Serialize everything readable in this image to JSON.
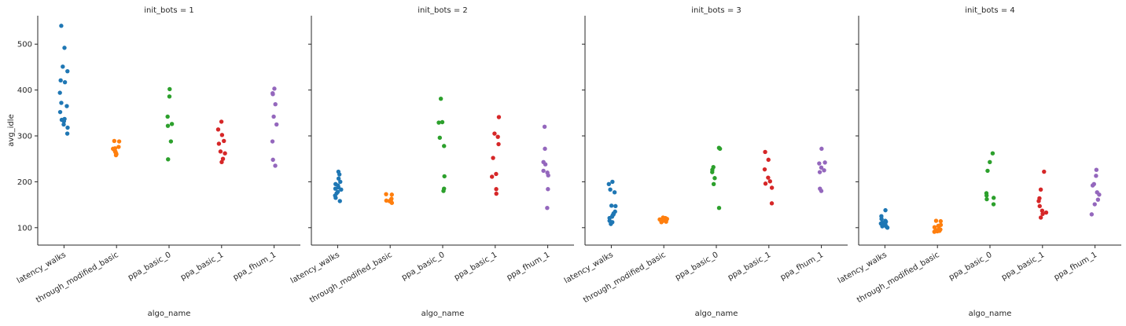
{
  "chart_data": {
    "type": "scatter",
    "subtype": "stripplot-facets",
    "ylabel": "avg_idle",
    "xlabel": "algo_name",
    "ylim": [
      62,
      562
    ],
    "yticks": [
      100,
      200,
      300,
      400,
      500
    ],
    "shared_y": true,
    "grid": false,
    "categories": [
      "latency_walks",
      "through_modified_basic",
      "ppa_basic_0",
      "ppa_basic_1",
      "ppa_fhum_1"
    ],
    "category_colors": {
      "latency_walks": "#1f77b4",
      "through_modified_basic": "#ff7f0e",
      "ppa_basic_0": "#2ca02c",
      "ppa_basic_1": "#d62728",
      "ppa_fhum_1": "#9467bd"
    },
    "facets": [
      {
        "title": "init_bots = 1",
        "points": {
          "latency_walks": [
            540,
            492,
            451,
            441,
            421,
            417,
            394,
            372,
            365,
            352,
            337,
            335,
            332,
            325,
            318,
            305
          ],
          "through_modified_basic": [
            289,
            288,
            276,
            273,
            272,
            270,
            266,
            265,
            262,
            260,
            258
          ],
          "ppa_basic_0": [
            402,
            386,
            342,
            326,
            322,
            288,
            249
          ],
          "ppa_basic_1": [
            331,
            314,
            302,
            289,
            283,
            266,
            262,
            250,
            243
          ],
          "ppa_fhum_1": [
            403,
            393,
            391,
            369,
            342,
            325,
            288,
            248,
            235
          ]
        }
      },
      {
        "title": "init_bots = 2",
        "points": {
          "latency_walks": [
            222,
            216,
            207,
            200,
            195,
            192,
            188,
            185,
            183,
            178,
            175,
            170,
            165,
            158
          ],
          "through_modified_basic": [
            173,
            172,
            163,
            161,
            159,
            158,
            157,
            156,
            154
          ],
          "ppa_basic_0": [
            381,
            330,
            329,
            296,
            278,
            212,
            185,
            180
          ],
          "ppa_basic_1": [
            341,
            305,
            298,
            282,
            252,
            217,
            211,
            184,
            174
          ],
          "ppa_fhum_1": [
            320,
            272,
            243,
            238,
            224,
            220,
            214,
            184,
            143
          ]
        }
      },
      {
        "title": "init_bots = 3",
        "points": {
          "latency_walks": [
            200,
            195,
            183,
            177,
            148,
            147,
            135,
            131,
            129,
            127,
            124,
            121,
            115,
            112,
            108
          ],
          "through_modified_basic": [
            122,
            121,
            120,
            119,
            118,
            117,
            116,
            115,
            114,
            113,
            112
          ],
          "ppa_basic_0": [
            274,
            272,
            232,
            226,
            221,
            208,
            195,
            143
          ],
          "ppa_basic_1": [
            265,
            248,
            227,
            209,
            201,
            196,
            187,
            153
          ],
          "ppa_fhum_1": [
            272,
            242,
            240,
            231,
            225,
            221,
            185,
            180
          ]
        }
      },
      {
        "title": "init_bots = 4",
        "points": {
          "latency_walks": [
            138,
            125,
            119,
            115,
            113,
            111,
            109,
            107,
            105,
            103,
            102,
            100
          ],
          "through_modified_basic": [
            115,
            114,
            106,
            104,
            101,
            98,
            96,
            95,
            93,
            92,
            91
          ],
          "ppa_basic_0": [
            262,
            243,
            224,
            175,
            170,
            165,
            162,
            151
          ],
          "ppa_basic_1": [
            222,
            183,
            164,
            158,
            147,
            137,
            133,
            130,
            122
          ],
          "ppa_fhum_1": [
            226,
            213,
            195,
            192,
            177,
            172,
            161,
            151,
            129
          ]
        }
      }
    ]
  }
}
